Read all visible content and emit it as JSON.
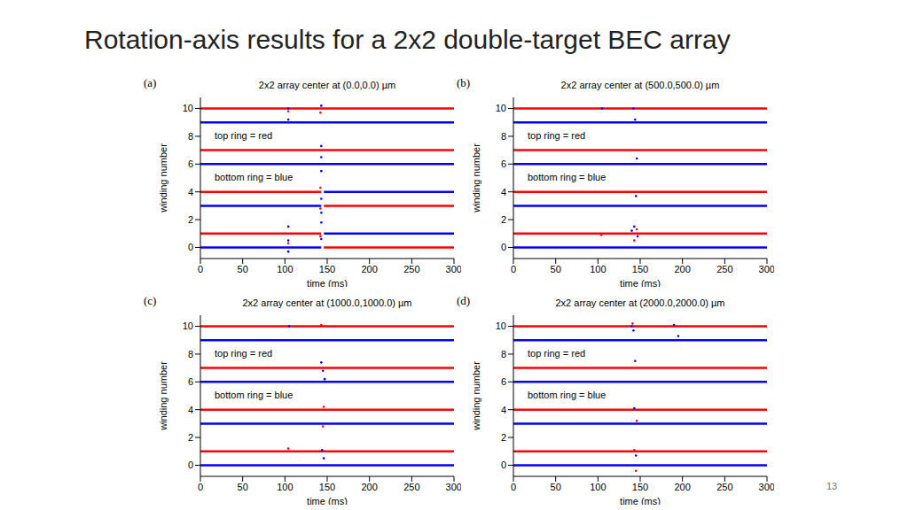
{
  "title": "Rotation-axis results for a 2x2 double-target BEC array",
  "page_number": "13",
  "chart_data": [
    {
      "type": "scatter",
      "label": "(a)",
      "title": "2x2 array center at (0.0,0.0) µm",
      "x_label": "time (ms)",
      "y_label": "winding number",
      "xlim": [
        0,
        300
      ],
      "ylim": [
        -0.8,
        10.8
      ],
      "xticks": [
        0,
        50,
        100,
        150,
        200,
        250,
        300
      ],
      "yticks": [
        0,
        2,
        4,
        6,
        8,
        10
      ],
      "annotations": [
        "top ring = red",
        "bottom ring = blue"
      ],
      "series": [
        {
          "type": "line",
          "color": "#ff0000",
          "x": [
            0,
            300
          ],
          "values": [
            10,
            10
          ]
        },
        {
          "type": "line",
          "color": "#0000ff",
          "x": [
            0,
            300
          ],
          "values": [
            9,
            9
          ]
        },
        {
          "type": "line",
          "color": "#ff0000",
          "x": [
            0,
            300
          ],
          "values": [
            7,
            7
          ]
        },
        {
          "type": "line",
          "color": "#0000ff",
          "x": [
            0,
            300
          ],
          "values": [
            6,
            6
          ]
        },
        {
          "type": "line",
          "color": "#ff0000",
          "x": [
            0,
            143
          ],
          "values": [
            4,
            4
          ]
        },
        {
          "type": "line",
          "color": "#0000ff",
          "x": [
            146,
            300
          ],
          "values": [
            4,
            4
          ]
        },
        {
          "type": "line",
          "color": "#0000ff",
          "x": [
            0,
            143
          ],
          "values": [
            3,
            3
          ]
        },
        {
          "type": "line",
          "color": "#ff0000",
          "x": [
            146,
            300
          ],
          "values": [
            3,
            3
          ]
        },
        {
          "type": "line",
          "color": "#ff0000",
          "x": [
            0,
            143
          ],
          "values": [
            1,
            1
          ]
        },
        {
          "type": "line",
          "color": "#0000ff",
          "x": [
            146,
            300
          ],
          "values": [
            1,
            1
          ]
        },
        {
          "type": "line",
          "color": "#0000ff",
          "x": [
            0,
            143
          ],
          "values": [
            0,
            0
          ]
        },
        {
          "type": "line",
          "color": "#ff0000",
          "x": [
            146,
            300
          ],
          "values": [
            0,
            0
          ]
        },
        {
          "type": "scatter",
          "color": "#0000ff",
          "x": [
            104,
            104,
            104,
            104,
            104,
            143,
            143,
            143,
            143,
            143,
            143,
            143,
            143
          ],
          "values": [
            10,
            9.2,
            1.5,
            0.5,
            -0.3,
            10.2,
            7.3,
            6.5,
            5.5,
            3.5,
            2.5,
            1.8,
            0.6
          ]
        },
        {
          "type": "scatter",
          "color": "#ff0000",
          "x": [
            104,
            104,
            142,
            142,
            142,
            142
          ],
          "values": [
            9.8,
            0.3,
            9.7,
            4.3,
            2.8,
            0.8
          ]
        }
      ]
    },
    {
      "type": "scatter",
      "label": "(b)",
      "title": "2x2 array center at (500.0,500.0) µm",
      "x_label": "time (ms)",
      "y_label": "winding number",
      "xlim": [
        0,
        300
      ],
      "ylim": [
        -0.8,
        10.8
      ],
      "xticks": [
        0,
        50,
        100,
        150,
        200,
        250,
        300
      ],
      "yticks": [
        0,
        2,
        4,
        6,
        8,
        10
      ],
      "annotations": [
        "top ring = red",
        "bottom ring = blue"
      ],
      "series": [
        {
          "type": "line",
          "color": "#ff0000",
          "x": [
            0,
            300
          ],
          "values": [
            10,
            10
          ]
        },
        {
          "type": "line",
          "color": "#0000ff",
          "x": [
            0,
            300
          ],
          "values": [
            9,
            9
          ]
        },
        {
          "type": "line",
          "color": "#ff0000",
          "x": [
            0,
            300
          ],
          "values": [
            7,
            7
          ]
        },
        {
          "type": "line",
          "color": "#0000ff",
          "x": [
            0,
            300
          ],
          "values": [
            6,
            6
          ]
        },
        {
          "type": "line",
          "color": "#ff0000",
          "x": [
            0,
            300
          ],
          "values": [
            4,
            4
          ]
        },
        {
          "type": "line",
          "color": "#0000ff",
          "x": [
            0,
            300
          ],
          "values": [
            3,
            3
          ]
        },
        {
          "type": "line",
          "color": "#ff0000",
          "x": [
            0,
            300
          ],
          "values": [
            1,
            1
          ]
        },
        {
          "type": "line",
          "color": "#0000ff",
          "x": [
            0,
            300
          ],
          "values": [
            0,
            0
          ]
        },
        {
          "type": "scatter",
          "color": "#0000ff",
          "x": [
            105,
            142,
            144,
            146,
            140,
            143,
            147,
            145
          ],
          "values": [
            10,
            10,
            9.2,
            6.4,
            1.2,
            1.5,
            0.8,
            3.7
          ]
        },
        {
          "type": "scatter",
          "color": "#ff0000",
          "x": [
            143,
            146,
            104
          ],
          "values": [
            0.5,
            1.3,
            0.9
          ]
        }
      ]
    },
    {
      "type": "scatter",
      "label": "(c)",
      "title": "2x2 array center at (1000.0,1000.0) µm",
      "x_label": "time (ms)",
      "y_label": "winding number",
      "xlim": [
        0,
        300
      ],
      "ylim": [
        -0.8,
        10.8
      ],
      "xticks": [
        0,
        50,
        100,
        150,
        200,
        250,
        300
      ],
      "yticks": [
        0,
        2,
        4,
        6,
        8,
        10
      ],
      "annotations": [
        "top ring = red",
        "bottom ring = blue"
      ],
      "series": [
        {
          "type": "line",
          "color": "#ff0000",
          "x": [
            0,
            300
          ],
          "values": [
            10,
            10
          ]
        },
        {
          "type": "line",
          "color": "#0000ff",
          "x": [
            0,
            300
          ],
          "values": [
            9,
            9
          ]
        },
        {
          "type": "line",
          "color": "#ff0000",
          "x": [
            0,
            300
          ],
          "values": [
            7,
            7
          ]
        },
        {
          "type": "line",
          "color": "#0000ff",
          "x": [
            0,
            300
          ],
          "values": [
            6,
            6
          ]
        },
        {
          "type": "line",
          "color": "#ff0000",
          "x": [
            0,
            300
          ],
          "values": [
            4,
            4
          ]
        },
        {
          "type": "line",
          "color": "#0000ff",
          "x": [
            0,
            300
          ],
          "values": [
            3,
            3
          ]
        },
        {
          "type": "line",
          "color": "#ff0000",
          "x": [
            0,
            300
          ],
          "values": [
            1,
            1
          ]
        },
        {
          "type": "line",
          "color": "#0000ff",
          "x": [
            0,
            300
          ],
          "values": [
            0,
            0
          ]
        },
        {
          "type": "scatter",
          "color": "#0000ff",
          "x": [
            105,
            143,
            145,
            147,
            144,
            146
          ],
          "values": [
            10,
            7.4,
            6.8,
            6.2,
            1.1,
            0.5
          ]
        },
        {
          "type": "scatter",
          "color": "#ff0000",
          "x": [
            143,
            146,
            104,
            145
          ],
          "values": [
            10.1,
            4.2,
            1.2,
            2.8
          ]
        }
      ]
    },
    {
      "type": "scatter",
      "label": "(d)",
      "title": "2x2 array center at (2000.0,2000.0) µm",
      "x_label": "time (ms)",
      "y_label": "winding number",
      "xlim": [
        0,
        300
      ],
      "ylim": [
        -0.8,
        10.8
      ],
      "xticks": [
        0,
        50,
        100,
        150,
        200,
        250,
        300
      ],
      "yticks": [
        0,
        2,
        4,
        6,
        8,
        10
      ],
      "annotations": [
        "top ring = red",
        "bottom ring = blue"
      ],
      "series": [
        {
          "type": "line",
          "color": "#ff0000",
          "x": [
            0,
            300
          ],
          "values": [
            10,
            10
          ]
        },
        {
          "type": "line",
          "color": "#0000ff",
          "x": [
            0,
            300
          ],
          "values": [
            9,
            9
          ]
        },
        {
          "type": "line",
          "color": "#ff0000",
          "x": [
            0,
            300
          ],
          "values": [
            7,
            7
          ]
        },
        {
          "type": "line",
          "color": "#0000ff",
          "x": [
            0,
            300
          ],
          "values": [
            6,
            6
          ]
        },
        {
          "type": "line",
          "color": "#ff0000",
          "x": [
            0,
            300
          ],
          "values": [
            4,
            4
          ]
        },
        {
          "type": "line",
          "color": "#0000ff",
          "x": [
            0,
            300
          ],
          "values": [
            3,
            3
          ]
        },
        {
          "type": "line",
          "color": "#ff0000",
          "x": [
            0,
            300
          ],
          "values": [
            1,
            1
          ]
        },
        {
          "type": "line",
          "color": "#0000ff",
          "x": [
            0,
            300
          ],
          "values": [
            0,
            0
          ]
        },
        {
          "type": "scatter",
          "color": "#0000ff",
          "x": [
            140,
            142,
            144,
            190,
            195,
            143,
            145
          ],
          "values": [
            10,
            9.7,
            7.5,
            10.1,
            9.3,
            4.1,
            0.7
          ]
        },
        {
          "type": "scatter",
          "color": "#ff0000",
          "x": [
            141,
            146,
            143,
            145
          ],
          "values": [
            10.2,
            3.2,
            1.1,
            -0.4
          ]
        }
      ]
    }
  ]
}
